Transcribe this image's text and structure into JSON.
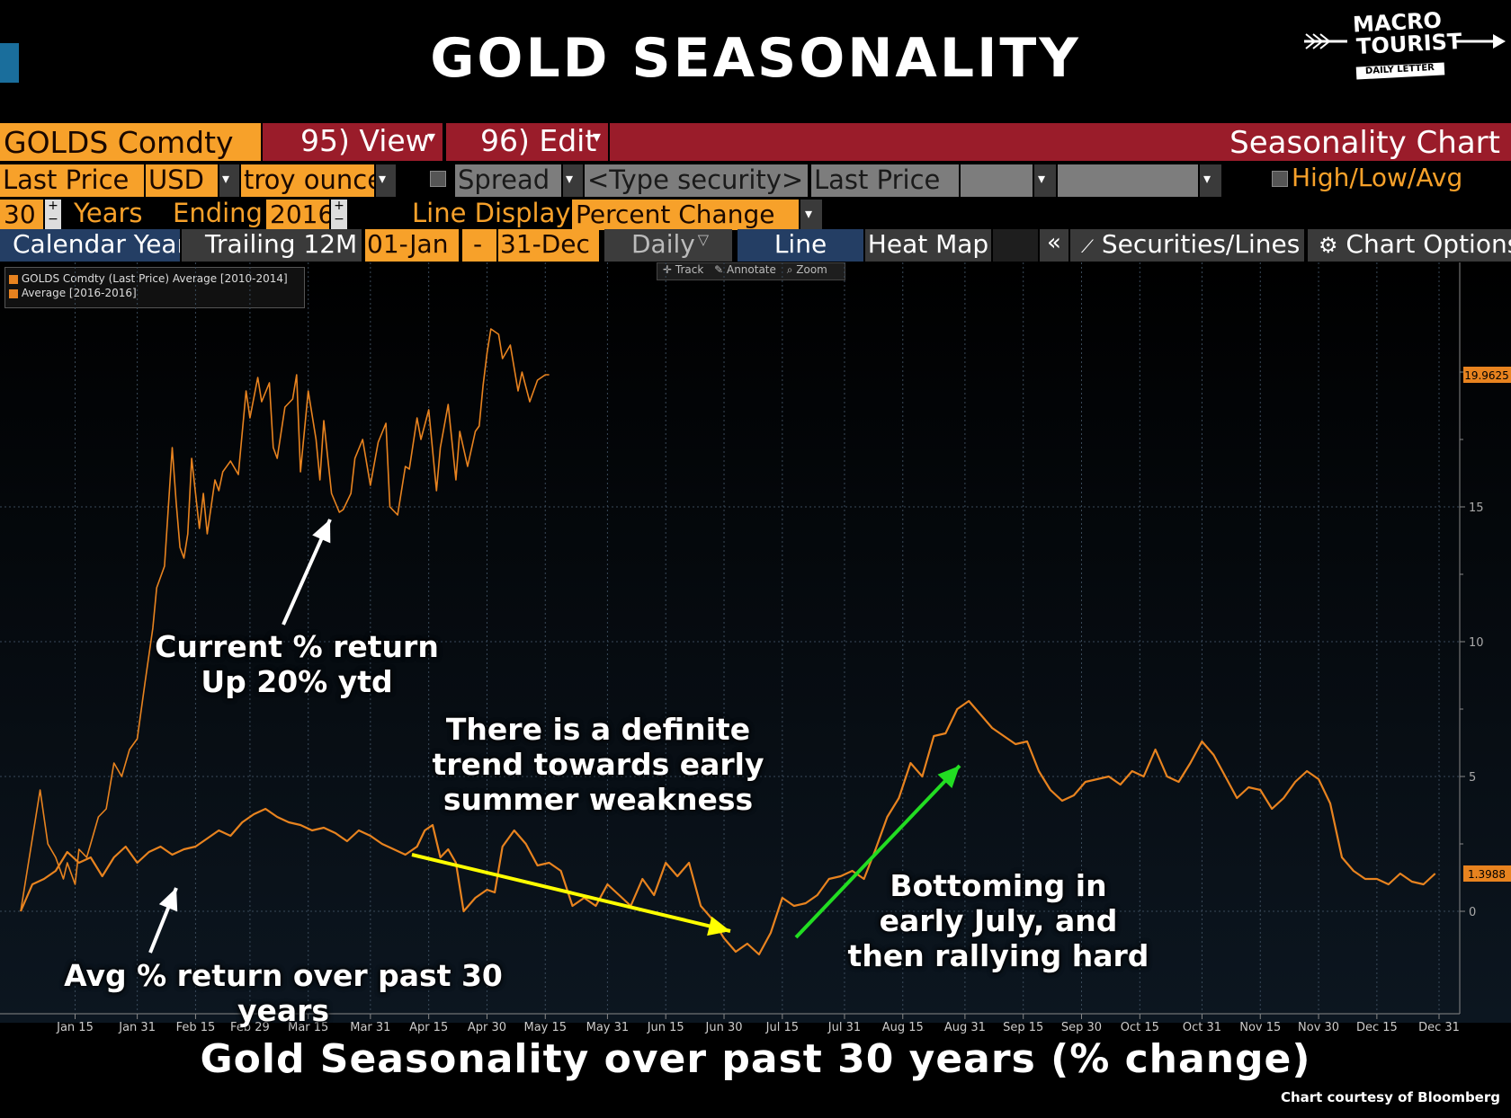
{
  "page_title": "GOLD SEASONALITY",
  "logo": {
    "line1": "MACRO",
    "line2": "TOURIST",
    "line3": "DAILY LETTER"
  },
  "toolbar": {
    "ticker": "GOLDS Comdty",
    "view": "95) View",
    "edit": "96) Edit",
    "chart_name": "Seasonality Chart",
    "field": "Last Price",
    "currency": "USD",
    "unit": "troy ounce",
    "spread": "Spread",
    "type_security": "<Type security>",
    "field2": "Last Price",
    "hla": "High/Low/Avg",
    "years_value": "30",
    "years_label": "Years",
    "ending_label": "Ending",
    "ending_value": "2016",
    "line_display_label": "Line Display",
    "line_display_value": "Percent Change",
    "tabs": [
      "Calendar Year",
      "Trailing 12M"
    ],
    "date_from": "01-Jan",
    "dash": "-",
    "date_to": "31-Dec",
    "freq": "Daily",
    "line": "Line",
    "heatmap": "Heat Map",
    "collapse": "«",
    "securities": "Securities/Lines",
    "chart_options": "Chart Options",
    "track": "Track",
    "annotate": "Annotate",
    "zoom": "Zoom"
  },
  "chart_data": {
    "type": "line",
    "title": "Gold Seasonality over past 30 years (% change)",
    "xlabel": "",
    "ylabel": "",
    "ylim": [
      -2.5,
      22
    ],
    "yticks": [
      0,
      5,
      10,
      15
    ],
    "x_tick_labels": [
      "Jan 15",
      "Jan 31",
      "Feb 15",
      "Feb 29",
      "Mar 15",
      "Mar 31",
      "Apr 15",
      "Apr 30",
      "May 15",
      "May 31",
      "Jun 15",
      "Jun 30",
      "Jul 15",
      "Jul 31",
      "Aug 15",
      "Aug 31",
      "Sep 15",
      "Sep 30",
      "Oct 15",
      "Oct 31",
      "Nov 15",
      "Nov 30",
      "Dec 15",
      "Dec 31"
    ],
    "x_tick_days": [
      15,
      31,
      46,
      60,
      75,
      91,
      106,
      121,
      136,
      152,
      167,
      182,
      197,
      213,
      228,
      244,
      259,
      274,
      289,
      305,
      320,
      335,
      350,
      366
    ],
    "series": [
      {
        "name": "GOLDS Comdty (Last Price) Average [2010-2014]",
        "color": "#e8831f",
        "x": [
          1,
          6,
          8,
          10,
          12,
          13,
          15,
          16,
          18,
          19,
          21,
          23,
          25,
          27,
          29,
          31,
          33,
          35,
          36,
          38,
          40,
          41,
          42,
          43,
          44,
          45,
          47,
          48,
          49,
          51,
          52,
          53,
          55,
          57,
          59,
          60,
          62,
          63,
          65,
          66,
          67,
          69,
          71,
          72,
          73,
          75,
          77,
          78,
          79,
          81,
          83,
          84,
          86,
          87,
          89,
          91,
          93,
          95,
          96,
          98,
          100,
          101,
          103,
          104,
          106,
          108,
          109,
          111,
          113,
          114,
          116,
          118,
          119,
          120,
          121,
          122,
          124,
          125,
          127,
          129,
          130,
          132,
          134,
          136,
          137
        ],
        "values": [
          0,
          4.5,
          2.5,
          2,
          1.2,
          1.8,
          1,
          2.3,
          2,
          2.5,
          3.5,
          3.8,
          5.5,
          5.0,
          6.0,
          6.4,
          8.5,
          10.5,
          12.0,
          12.8,
          17.2,
          15.2,
          13.5,
          13.1,
          14.0,
          16.8,
          14.2,
          15.5,
          14.0,
          16.0,
          15.6,
          16.3,
          16.7,
          16.2,
          19.3,
          18.3,
          19.8,
          18.9,
          19.6,
          17.2,
          16.8,
          18.7,
          19.0,
          19.9,
          16.3,
          19.3,
          17.5,
          16.0,
          18.2,
          15.5,
          14.8,
          14.9,
          15.5,
          16.8,
          17.5,
          15.8,
          17.4,
          18.1,
          15.0,
          14.7,
          16.5,
          16.4,
          18.3,
          17.5,
          18.6,
          15.6,
          17.2,
          18.8,
          16.0,
          17.8,
          16.5,
          17.8,
          18.0,
          19.5,
          20.7,
          21.6,
          21.4,
          20.5,
          21.0,
          19.3,
          20.0,
          18.9,
          19.7,
          19.9,
          19.9
        ]
      },
      {
        "name": "Average [2016-2016]",
        "color": "#e8831f",
        "x": [
          1,
          4,
          7,
          10,
          13,
          16,
          19,
          22,
          25,
          28,
          31,
          34,
          37,
          40,
          43,
          46,
          49,
          52,
          55,
          58,
          61,
          64,
          67,
          70,
          73,
          76,
          79,
          82,
          85,
          88,
          91,
          94,
          97,
          100,
          103,
          105,
          107,
          109,
          111,
          113,
          115,
          118,
          121,
          123,
          125,
          128,
          131,
          134,
          137,
          140,
          143,
          146,
          149,
          152,
          155,
          158,
          161,
          164,
          167,
          170,
          173,
          176,
          179,
          182,
          185,
          188,
          191,
          194,
          197,
          200,
          203,
          206,
          209,
          212,
          215,
          218,
          221,
          224,
          227,
          230,
          233,
          236,
          239,
          242,
          245,
          248,
          251,
          254,
          257,
          260,
          263,
          266,
          269,
          272,
          275,
          278,
          281,
          284,
          287,
          290,
          293,
          296,
          299,
          302,
          305,
          308,
          311,
          314,
          317,
          320,
          323,
          326,
          329,
          332,
          335,
          338,
          341,
          344,
          347,
          350,
          353,
          356,
          359,
          362,
          365
        ],
        "values": [
          0,
          1,
          1.2,
          1.5,
          2.2,
          1.8,
          2.0,
          1.3,
          2.0,
          2.4,
          1.8,
          2.2,
          2.4,
          2.1,
          2.3,
          2.4,
          2.7,
          3.0,
          2.8,
          3.3,
          3.6,
          3.8,
          3.5,
          3.3,
          3.2,
          3.0,
          3.1,
          2.9,
          2.6,
          3.0,
          2.8,
          2.5,
          2.3,
          2.1,
          2.4,
          3.0,
          3.2,
          2.0,
          2.3,
          1.8,
          0,
          0.5,
          0.8,
          0.7,
          2.4,
          3.0,
          2.5,
          1.7,
          1.8,
          1.5,
          0.2,
          0.5,
          0.2,
          1.0,
          0.6,
          0.2,
          1.2,
          0.6,
          1.8,
          1.3,
          1.8,
          0.2,
          -0.3,
          -1.0,
          -1.5,
          -1.2,
          -1.6,
          -0.8,
          0.5,
          0.2,
          0.3,
          0.6,
          1.2,
          1.3,
          1.5,
          1.2,
          2.3,
          3.5,
          4.2,
          5.5,
          5.0,
          6.5,
          6.6,
          7.5,
          7.8,
          7.3,
          6.8,
          6.5,
          6.2,
          6.3,
          5.2,
          4.5,
          4.1,
          4.3,
          4.8,
          4.9,
          5.0,
          4.7,
          5.2,
          5.0,
          6.0,
          5.0,
          4.8,
          5.5,
          6.3,
          5.8,
          5.0,
          4.2,
          4.6,
          4.5,
          3.8,
          4.2,
          4.8,
          5.2,
          4.9,
          4.0,
          2.0,
          1.5,
          1.2,
          1.2,
          1.0,
          1.4,
          1.1,
          1.0,
          1.4
        ]
      }
    ],
    "last_values": [
      "19.9625",
      "1.3988"
    ]
  },
  "annotations": {
    "current_l1": "Current % return",
    "current_l2": "Up 20% ytd",
    "trend_l1": "There is a definite",
    "trend_l2": "trend towards early",
    "trend_l3": "summer weakness",
    "bottom_l1": "Bottoming in",
    "bottom_l2": "early July, and",
    "bottom_l3": "then rallying hard",
    "avg": "Avg % return over past 30 years"
  },
  "bottom_title": "Gold Seasonality over past 30 years (% change)",
  "credit": "Chart courtesy of Bloomberg",
  "colors": {
    "orange": "#f7a12a",
    "red": "#9a1c2a",
    "line": "#e8831f"
  }
}
